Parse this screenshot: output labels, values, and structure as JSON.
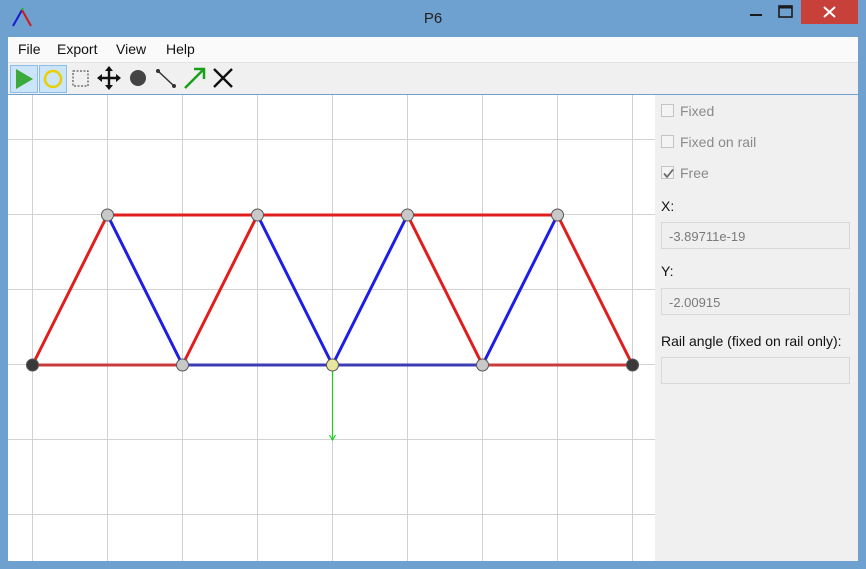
{
  "window": {
    "title": "P6",
    "app_icon": "truss-app-icon",
    "controls": [
      "minimize-icon",
      "maximize-icon",
      "close-icon"
    ]
  },
  "menu": [
    {
      "label": "File"
    },
    {
      "label": "Export"
    },
    {
      "label": "View"
    },
    {
      "label": "Help"
    }
  ],
  "toolbar": {
    "tools": [
      {
        "name": "run-tool",
        "icon": "play-icon",
        "active": true
      },
      {
        "name": "select-node-tool",
        "icon": "circle-outline-icon",
        "active": true
      },
      {
        "name": "box-select-tool",
        "icon": "dashed-rectangle-icon",
        "active": false
      },
      {
        "name": "move-tool",
        "icon": "move-arrows-icon",
        "active": false
      },
      {
        "name": "add-node-tool",
        "icon": "filled-circle-icon",
        "active": false
      },
      {
        "name": "add-beam-tool",
        "icon": "line-icon",
        "active": false
      },
      {
        "name": "add-force-tool",
        "icon": "arrow-icon",
        "active": false
      },
      {
        "name": "delete-tool",
        "icon": "x-icon",
        "active": false
      }
    ]
  },
  "panel": {
    "fixed_label": "Fixed",
    "fixed_checked": false,
    "fixed_on_rail_label": "Fixed on rail",
    "fixed_on_rail_checked": false,
    "free_label": "Free",
    "free_checked": true,
    "x_label": "X:",
    "x_value": "-3.89711e-19",
    "y_label": "Y:",
    "y_value": "-2.00915",
    "rail_angle_label": "Rail angle (fixed on rail only):",
    "rail_angle_value": ""
  },
  "colors": {
    "tension": "#e11e1e",
    "compression": "#1e1ee6",
    "bottom_tension": "#c83c3c",
    "bottom_compression": "#3c3cb4",
    "force": "#22cc22",
    "node_free": "#c8c8c8",
    "node_fixed": "#3a3a3a",
    "node_selected": "#e6e6a0",
    "grid": "#d2d2d2"
  },
  "truss": {
    "nodes": [
      {
        "id": "n0",
        "x": 0,
        "y": 0,
        "type": "fixed"
      },
      {
        "id": "n1",
        "x": 1,
        "y": 2,
        "type": "free"
      },
      {
        "id": "n2",
        "x": 2,
        "y": 0,
        "type": "free"
      },
      {
        "id": "n3",
        "x": 3,
        "y": 2,
        "type": "free"
      },
      {
        "id": "n4",
        "x": 4,
        "y": 0,
        "type": "selected"
      },
      {
        "id": "n5",
        "x": 5,
        "y": 2,
        "type": "free"
      },
      {
        "id": "n6",
        "x": 6,
        "y": 0,
        "type": "free"
      },
      {
        "id": "n7",
        "x": 7,
        "y": 2,
        "type": "free"
      },
      {
        "id": "n8",
        "x": 8,
        "y": 0,
        "type": "fixed"
      }
    ],
    "members": [
      {
        "a": "n1",
        "b": "n3",
        "color": "tension"
      },
      {
        "a": "n3",
        "b": "n5",
        "color": "tension"
      },
      {
        "a": "n5",
        "b": "n7",
        "color": "tension"
      },
      {
        "a": "n0",
        "b": "n1",
        "color": "tension"
      },
      {
        "a": "n1",
        "b": "n2",
        "color": "compression"
      },
      {
        "a": "n2",
        "b": "n3",
        "color": "tension"
      },
      {
        "a": "n3",
        "b": "n4",
        "color": "compression"
      },
      {
        "a": "n4",
        "b": "n5",
        "color": "compression"
      },
      {
        "a": "n5",
        "b": "n6",
        "color": "tension"
      },
      {
        "a": "n6",
        "b": "n7",
        "color": "compression"
      },
      {
        "a": "n7",
        "b": "n8",
        "color": "tension"
      },
      {
        "a": "n0",
        "b": "n2",
        "color": "bottom_tension"
      },
      {
        "a": "n2",
        "b": "n4",
        "color": "bottom_compression"
      },
      {
        "a": "n4",
        "b": "n6",
        "color": "bottom_compression"
      },
      {
        "a": "n6",
        "b": "n8",
        "color": "bottom_tension"
      }
    ],
    "force": {
      "node": "n4",
      "dx": 0,
      "dy": -1
    }
  }
}
